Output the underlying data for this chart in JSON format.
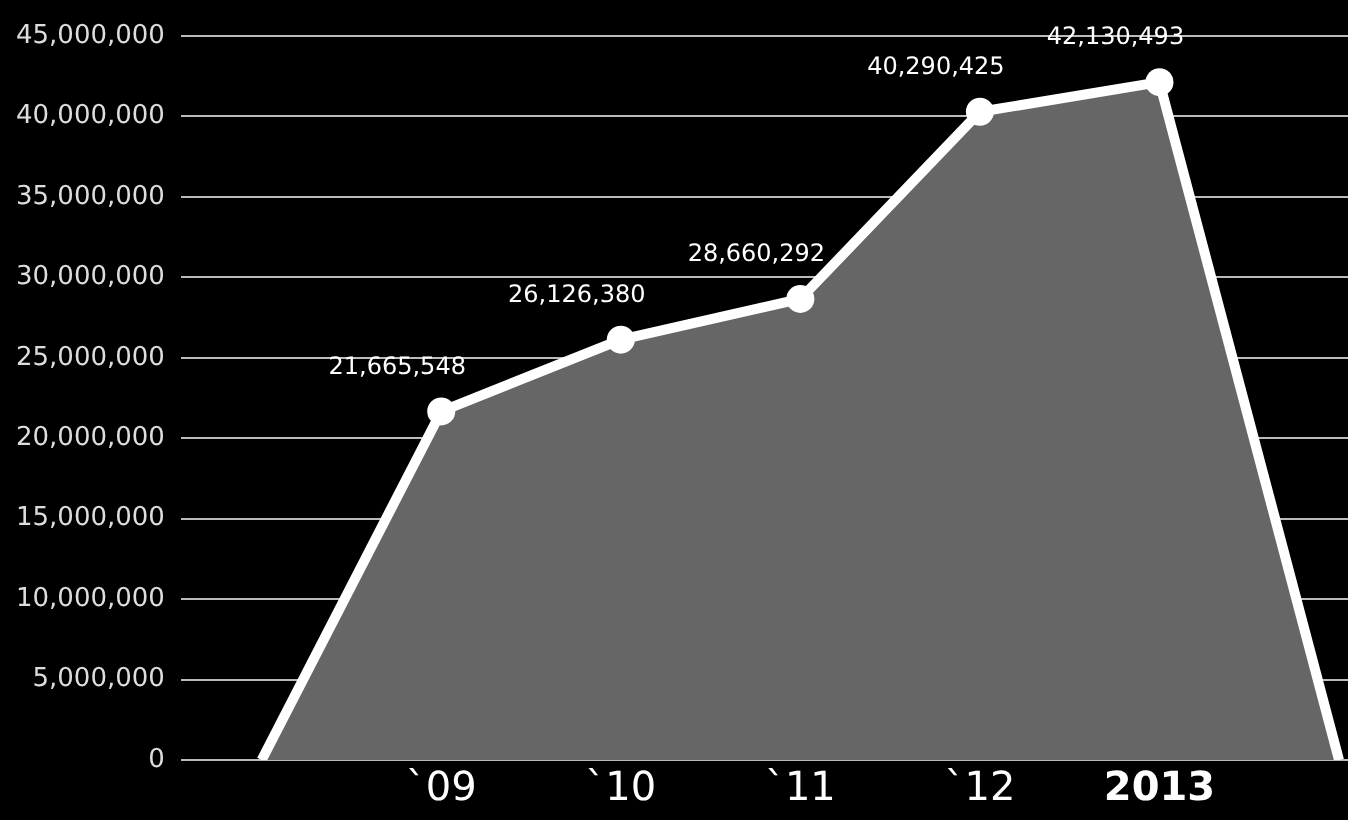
{
  "chart_data": {
    "type": "area",
    "categories": [
      null,
      "`09",
      "`10",
      "`11",
      "`12",
      "2013",
      null
    ],
    "series": [
      {
        "color": "#666666",
        "values": [
          0,
          21665548,
          26126380,
          28660292,
          40290425,
          42130493,
          0
        ],
        "value_labels": [
          null,
          "21,665,548",
          "26,126,380",
          "28,660,292",
          "40,290,425",
          "42,130,493",
          null
        ]
      }
    ],
    "ylim": [
      0,
      45000000
    ],
    "yticks": [
      {
        "value": 0,
        "label": "0"
      },
      {
        "value": 5000000,
        "label": "5,000,000"
      },
      {
        "value": 10000000,
        "label": "10,000,000"
      },
      {
        "value": 15000000,
        "label": "15,000,000"
      },
      {
        "value": 20000000,
        "label": "20,000,000"
      },
      {
        "value": 25000000,
        "label": "25,000,000"
      },
      {
        "value": 30000000,
        "label": "30,000,000"
      },
      {
        "value": 35000000,
        "label": "35,000,000"
      },
      {
        "value": 40000000,
        "label": "40,000,000"
      },
      {
        "value": 45000000,
        "label": "45,000,000"
      }
    ],
    "grid": "y",
    "marker": "circle",
    "legend": false
  }
}
